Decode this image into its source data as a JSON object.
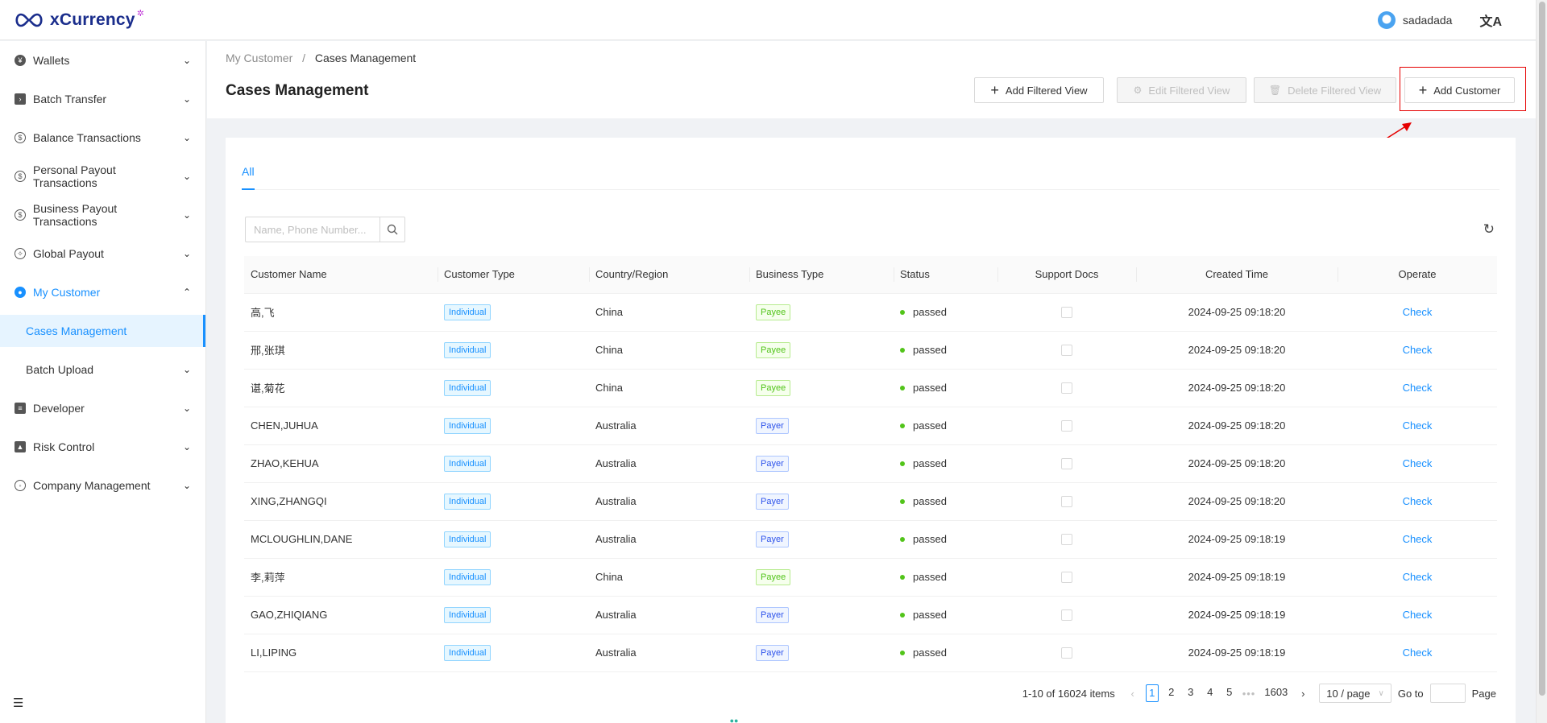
{
  "app": {
    "brand": "xCurrency",
    "brand_star": "✲",
    "user_name": "sadadada",
    "lang_icon": "translate-icon"
  },
  "sidebar": {
    "items": [
      {
        "label": "Wallets",
        "icon": "wallet-icon"
      },
      {
        "label": "Batch Transfer",
        "icon": "batch-transfer-icon"
      },
      {
        "label": "Balance Transactions",
        "icon": "balance-icon"
      },
      {
        "label": "Personal Payout Transactions",
        "icon": "personal-payout-icon"
      },
      {
        "label": "Business Payout Transactions",
        "icon": "business-payout-icon"
      },
      {
        "label": "Global Payout",
        "icon": "global-payout-icon"
      },
      {
        "label": "My Customer",
        "icon": "users-icon"
      },
      {
        "label": "Developer",
        "icon": "developer-icon"
      },
      {
        "label": "Risk Control",
        "icon": "risk-control-icon"
      },
      {
        "label": "Company Management",
        "icon": "company-icon"
      }
    ],
    "sub_items": [
      {
        "label": "Cases Management"
      },
      {
        "label": "Batch Upload"
      }
    ]
  },
  "header": {
    "breadcrumb": [
      "My Customer",
      "Cases Management"
    ],
    "breadcrumb_sep": "/",
    "title": "Cases Management",
    "buttons": {
      "add_filtered_view": "Add Filtered View",
      "edit_filtered_view": "Edit Filtered View",
      "delete_filtered_view": "Delete Filtered View",
      "add_customer": "Add Customer"
    }
  },
  "tabs": [
    {
      "label": "All"
    }
  ],
  "search": {
    "placeholder": "Name, Phone Number..."
  },
  "table": {
    "columns": [
      "Customer Name",
      "Customer Type",
      "Country/Region",
      "Business Type",
      "Status",
      "Support Docs",
      "Created Time",
      "Operate"
    ],
    "rows": [
      {
        "name": "高,飞",
        "type": "Individual",
        "country": "China",
        "business": "Payee",
        "status": "passed",
        "created": "2024-09-25 09:18:20",
        "op": "Check"
      },
      {
        "name": "邢,张琪",
        "type": "Individual",
        "country": "China",
        "business": "Payee",
        "status": "passed",
        "created": "2024-09-25 09:18:20",
        "op": "Check"
      },
      {
        "name": "谌,菊花",
        "type": "Individual",
        "country": "China",
        "business": "Payee",
        "status": "passed",
        "created": "2024-09-25 09:18:20",
        "op": "Check"
      },
      {
        "name": "CHEN,JUHUA",
        "type": "Individual",
        "country": "Australia",
        "business": "Payer",
        "status": "passed",
        "created": "2024-09-25 09:18:20",
        "op": "Check"
      },
      {
        "name": "ZHAO,KEHUA",
        "type": "Individual",
        "country": "Australia",
        "business": "Payer",
        "status": "passed",
        "created": "2024-09-25 09:18:20",
        "op": "Check"
      },
      {
        "name": "XING,ZHANGQI",
        "type": "Individual",
        "country": "Australia",
        "business": "Payer",
        "status": "passed",
        "created": "2024-09-25 09:18:20",
        "op": "Check"
      },
      {
        "name": "MCLOUGHLIN,DANE",
        "type": "Individual",
        "country": "Australia",
        "business": "Payer",
        "status": "passed",
        "created": "2024-09-25 09:18:19",
        "op": "Check"
      },
      {
        "name": "李,莉萍",
        "type": "Individual",
        "country": "China",
        "business": "Payee",
        "status": "passed",
        "created": "2024-09-25 09:18:19",
        "op": "Check"
      },
      {
        "name": "GAO,ZHIQIANG",
        "type": "Individual",
        "country": "Australia",
        "business": "Payer",
        "status": "passed",
        "created": "2024-09-25 09:18:19",
        "op": "Check"
      },
      {
        "name": "LI,LIPING",
        "type": "Individual",
        "country": "Australia",
        "business": "Payer",
        "status": "passed",
        "created": "2024-09-25 09:18:19",
        "op": "Check"
      }
    ]
  },
  "pagination": {
    "total_text": "1-10 of 16024 items",
    "pages": [
      "1",
      "2",
      "3",
      "4",
      "5"
    ],
    "ellipsis": "•••",
    "last_page": "1603",
    "page_size": "10 / page",
    "goto_label": "Go to",
    "page_label": "Page"
  },
  "colors": {
    "primary": "#1890ff",
    "success": "#52c41a",
    "highlight": "#e60000"
  }
}
